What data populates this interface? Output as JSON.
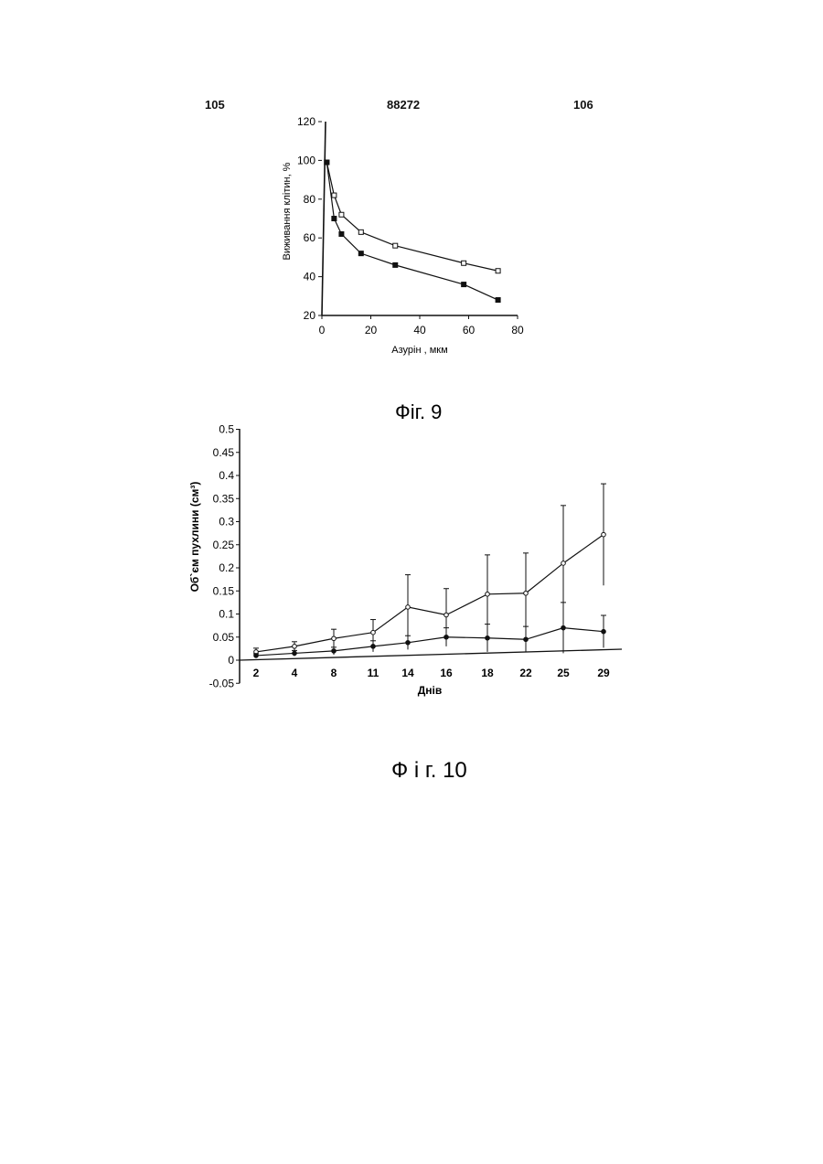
{
  "header": {
    "page_left": "105",
    "patent_number": "88272",
    "page_right": "106"
  },
  "figures": {
    "fig9_caption": "Фіг. 9",
    "fig10_caption": "Ф і г. 10"
  },
  "chart_data": [
    {
      "type": "line",
      "title": "",
      "xlabel": "Азурін , мкм",
      "ylabel": "Виживання клітин, %",
      "xlim": [
        0,
        80
      ],
      "ylim": [
        20,
        120
      ],
      "x_ticks": [
        "0",
        "20",
        "40",
        "60",
        "80"
      ],
      "y_ticks": [
        "20",
        "40",
        "60",
        "80",
        "100",
        "120"
      ],
      "grid": false,
      "series": [
        {
          "marker": "open-square",
          "x": [
            2,
            5,
            8,
            16,
            30,
            58,
            72
          ],
          "y": [
            99,
            82,
            72,
            63,
            56,
            47,
            43
          ]
        },
        {
          "marker": "filled-square",
          "x": [
            2,
            5,
            8,
            16,
            30,
            58,
            72
          ],
          "y": [
            99,
            70,
            62,
            52,
            46,
            36,
            28
          ]
        }
      ]
    },
    {
      "type": "line",
      "title": "",
      "xlabel": "Днів",
      "ylabel": "Об`єм пухлини (см³)",
      "categories": [
        "2",
        "4",
        "8",
        "11",
        "14",
        "16",
        "18",
        "22",
        "25",
        "29"
      ],
      "ylim": [
        -0.05,
        0.5
      ],
      "y_ticks": [
        "-0.05",
        "0",
        "0.05",
        "0.1",
        "0.15",
        "0.2",
        "0.25",
        "0.3",
        "0.35",
        "0.4",
        "0.45",
        "0.5"
      ],
      "grid": false,
      "series": [
        {
          "marker": "open-circle",
          "values": [
            0.018,
            0.03,
            0.047,
            0.06,
            0.115,
            0.098,
            0.143,
            0.145,
            0.21,
            0.272
          ],
          "error": [
            0.008,
            0.01,
            0.02,
            0.028,
            0.07,
            0.057,
            0.085,
            0.087,
            0.125,
            0.11
          ]
        },
        {
          "marker": "filled-circle",
          "values": [
            0.01,
            0.015,
            0.02,
            0.03,
            0.038,
            0.05,
            0.048,
            0.045,
            0.07,
            0.062
          ],
          "error": [
            0.004,
            0.006,
            0.008,
            0.012,
            0.015,
            0.02,
            0.03,
            0.028,
            0.055,
            0.035
          ]
        }
      ]
    }
  ]
}
